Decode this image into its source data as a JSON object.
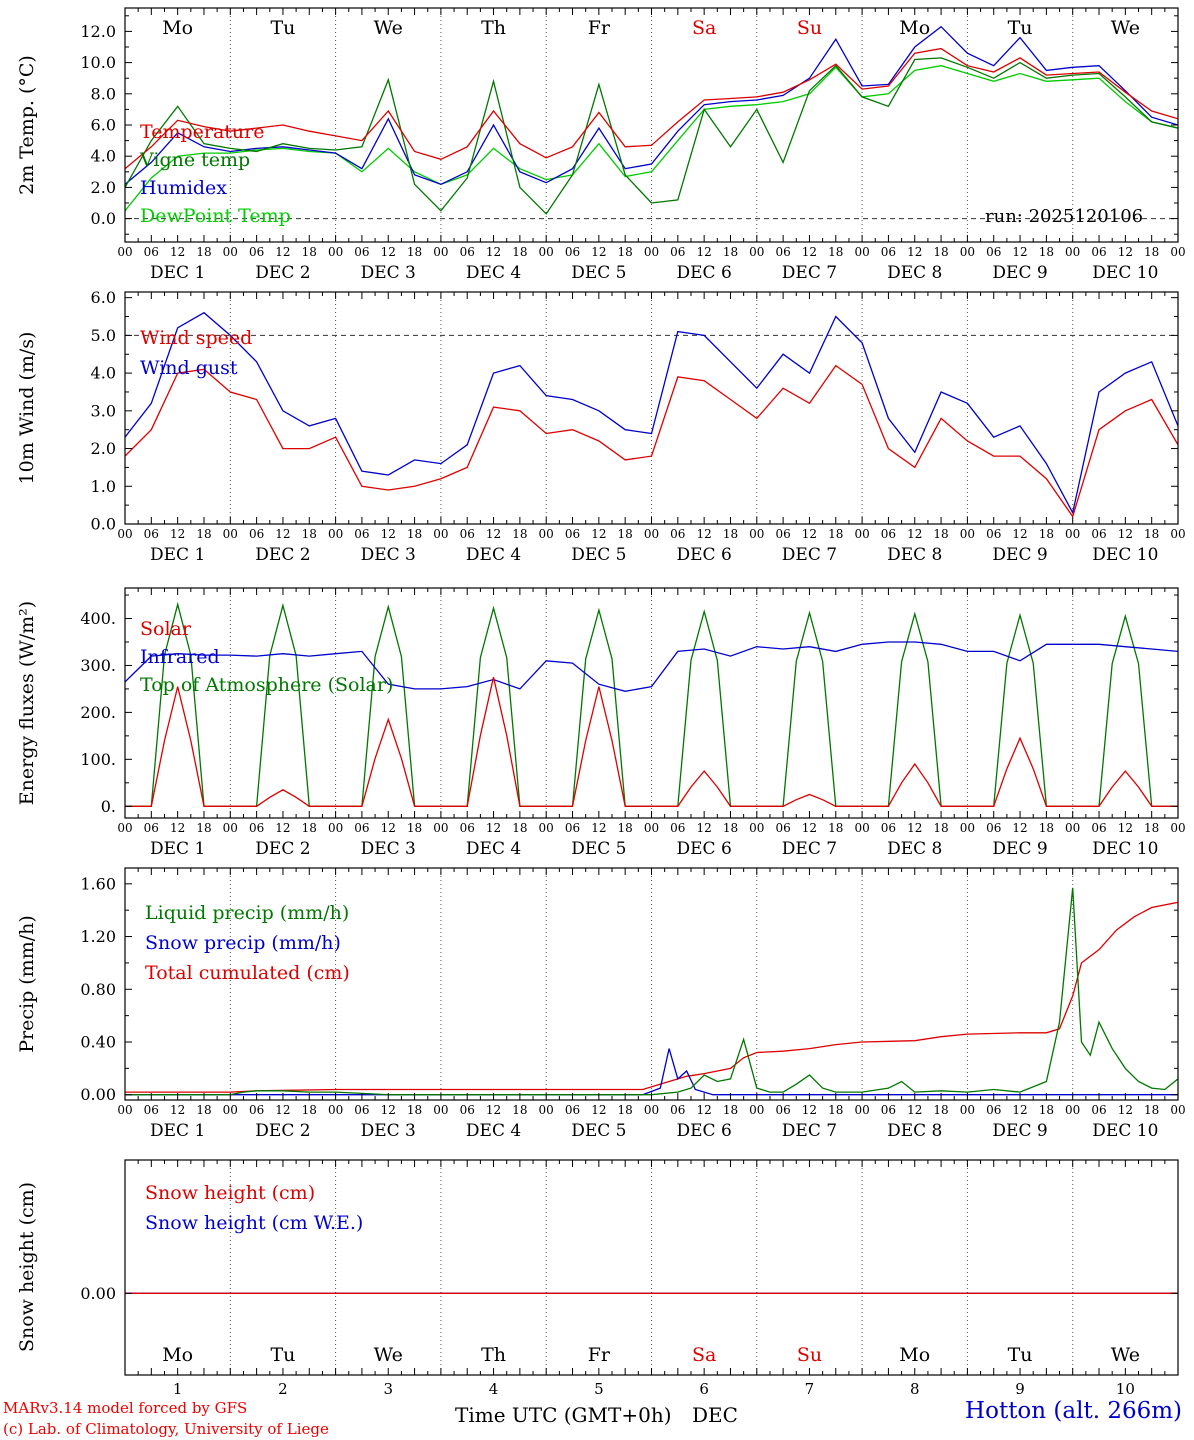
{
  "station_label": "Hotton (alt. 266m)",
  "credits": [
    "MARv3.14 model forced by GFS",
    "(c) Lab. of Climatology, University of Liege"
  ],
  "time_axis_label": "Time UTC (GMT+0h)",
  "month_label": "DEC",
  "run_label": "run: 2025120106",
  "colors": {
    "red": "#dd0000",
    "darkgreen": "#007700",
    "blue": "#0000cc",
    "lightgreen": "#00cc00",
    "black": "#000000"
  },
  "x_axis": {
    "tick_labels_cycle": [
      "00",
      "06",
      "12",
      "18"
    ],
    "month": "DEC",
    "day_numbers": [
      1,
      2,
      3,
      4,
      5,
      6,
      7,
      8,
      9,
      10
    ],
    "day_names": [
      "Mo",
      "Tu",
      "We",
      "Th",
      "Fr",
      "Sa",
      "Su",
      "Mo",
      "Tu",
      "We"
    ],
    "weekend_indices": [
      5,
      6
    ],
    "weekend_color": "#dd0000",
    "day_name_color": "#000000"
  },
  "chart_data": {
    "type": "line",
    "panels": [
      {
        "id": "temp",
        "type": "line",
        "ylabel": "2m Temp. (°C)",
        "ylim": [
          -1.5,
          13.5
        ],
        "yticks": [
          {
            "v": 0,
            "label": "0.0"
          },
          {
            "v": 2,
            "label": "2.0"
          },
          {
            "v": 4,
            "label": "4.0"
          },
          {
            "v": 6,
            "label": "6.0"
          },
          {
            "v": 8,
            "label": "8.0"
          },
          {
            "v": 10,
            "label": "10.0"
          },
          {
            "v": 12,
            "label": "12.0"
          }
        ],
        "yminor": 1,
        "hline": 0,
        "series": [
          {
            "name": "Temperature",
            "color": "#dd0000",
            "xstep": 6,
            "y": [
              3.2,
              4.6,
              6.3,
              5.9,
              5.6,
              5.8,
              6.0,
              5.6,
              5.3,
              5.0,
              6.9,
              4.3,
              3.8,
              4.6,
              6.9,
              4.8,
              3.9,
              4.6,
              6.8,
              4.6,
              4.7,
              6.2,
              7.6,
              7.7,
              7.8,
              8.1,
              8.9,
              9.9,
              8.3,
              8.5,
              10.6,
              10.9,
              9.8,
              9.4,
              10.3,
              9.2,
              9.3,
              9.4,
              8.1,
              6.9,
              6.4
            ]
          },
          {
            "name": "Vigne temp",
            "color": "#007700",
            "xstep": 6,
            "y": [
              2.0,
              5.0,
              7.2,
              4.8,
              4.5,
              4.3,
              4.8,
              4.5,
              4.4,
              4.6,
              8.9,
              2.2,
              0.5,
              2.6,
              8.8,
              2.0,
              0.3,
              2.8,
              8.6,
              2.8,
              1.0,
              1.2,
              7.0,
              4.6,
              7.0,
              3.6,
              8.2,
              9.8,
              7.8,
              7.2,
              10.2,
              10.3,
              9.7,
              9.0,
              10.0,
              9.0,
              9.2,
              9.3,
              7.8,
              6.2,
              5.8
            ]
          },
          {
            "name": "Humidex",
            "color": "#0000cc",
            "xstep": 6,
            "y": [
              2.2,
              3.6,
              5.5,
              4.6,
              4.3,
              4.5,
              4.6,
              4.4,
              4.2,
              3.2,
              6.4,
              2.8,
              2.2,
              3.0,
              6.0,
              3.0,
              2.3,
              3.2,
              5.8,
              3.2,
              3.5,
              5.6,
              7.3,
              7.5,
              7.6,
              7.9,
              9.0,
              11.5,
              8.5,
              8.6,
              11.0,
              12.3,
              10.6,
              9.8,
              11.6,
              9.5,
              9.7,
              9.8,
              8.2,
              6.5,
              6.0
            ]
          },
          {
            "name": "DewPoint Temp",
            "color": "#00cc00",
            "xstep": 6,
            "y": [
              0.5,
              2.6,
              4.0,
              4.2,
              4.2,
              4.4,
              4.5,
              4.3,
              4.2,
              3.0,
              4.5,
              3.0,
              2.2,
              2.8,
              4.5,
              3.2,
              2.5,
              2.8,
              4.8,
              2.7,
              3.0,
              5.0,
              7.0,
              7.2,
              7.3,
              7.5,
              8.0,
              9.7,
              7.8,
              8.0,
              9.5,
              9.8,
              9.3,
              8.8,
              9.3,
              8.8,
              8.9,
              9.0,
              7.5,
              6.2,
              5.8
            ]
          }
        ]
      },
      {
        "id": "wind",
        "type": "line",
        "ylabel": "10m Wind (m/s)",
        "ylim": [
          0,
          6.15
        ],
        "yticks": [
          {
            "v": 0,
            "label": "0.0"
          },
          {
            "v": 1,
            "label": "1.0"
          },
          {
            "v": 2,
            "label": "2.0"
          },
          {
            "v": 3,
            "label": "3.0"
          },
          {
            "v": 4,
            "label": "4.0"
          },
          {
            "v": 5,
            "label": "5.0"
          },
          {
            "v": 6,
            "label": "6.0"
          }
        ],
        "yminor": 0.5,
        "hline": 5,
        "series": [
          {
            "name": "Wind speed",
            "color": "#dd0000",
            "xstep": 6,
            "y": [
              1.8,
              2.5,
              4.0,
              4.1,
              3.5,
              3.3,
              2.0,
              2.0,
              2.3,
              1.0,
              0.9,
              1.0,
              1.2,
              1.5,
              3.1,
              3.0,
              2.4,
              2.5,
              2.2,
              1.7,
              1.8,
              3.9,
              3.8,
              3.3,
              2.8,
              3.6,
              3.2,
              4.2,
              3.7,
              2.0,
              1.5,
              2.8,
              2.2,
              1.8,
              1.8,
              1.2,
              0.2,
              2.5,
              3.0,
              3.3,
              2.1
            ]
          },
          {
            "name": "Wind gust",
            "color": "#0000cc",
            "xstep": 6,
            "y": [
              2.3,
              3.2,
              5.2,
              5.6,
              5.0,
              4.3,
              3.0,
              2.6,
              2.8,
              1.4,
              1.3,
              1.7,
              1.6,
              2.1,
              4.0,
              4.2,
              3.4,
              3.3,
              3.0,
              2.5,
              2.4,
              5.1,
              5.0,
              4.3,
              3.6,
              4.5,
              4.0,
              5.5,
              4.8,
              2.8,
              1.9,
              3.5,
              3.2,
              2.3,
              2.6,
              1.6,
              0.3,
              3.5,
              4.0,
              4.3,
              2.6
            ]
          }
        ]
      },
      {
        "id": "energy",
        "type": "line",
        "ylabel": "Energy fluxes (W/m²)",
        "ylim": [
          -25,
          465
        ],
        "yticks": [
          {
            "v": 0,
            "label": "0."
          },
          {
            "v": 100,
            "label": "100."
          },
          {
            "v": 200,
            "label": "200."
          },
          {
            "v": 300,
            "label": "300."
          },
          {
            "v": 400,
            "label": "400."
          }
        ],
        "yminor": 50,
        "hline": null,
        "series": [
          {
            "name": "Solar",
            "color": "#dd0000",
            "x": [
              0,
              6,
              9,
              12,
              15,
              18,
              30,
              33,
              36,
              39,
              42,
              54,
              57,
              60,
              63,
              66,
              78,
              81,
              84,
              87,
              90,
              102,
              105,
              108,
              111,
              114,
              126,
              129,
              132,
              135,
              138,
              150,
              153,
              156,
              159,
              162,
              174,
              177,
              180,
              183,
              186,
              198,
              201,
              204,
              207,
              210,
              222,
              225,
              228,
              231,
              234,
              240
            ],
            "y": [
              0,
              0,
              140,
              255,
              140,
              0,
              0,
              19,
              35,
              19,
              0,
              0,
              102,
              185,
              102,
              0,
              0,
              151,
              275,
              151,
              0,
              0,
              140,
              255,
              140,
              0,
              0,
              41,
              75,
              41,
              0,
              0,
              14,
              25,
              14,
              0,
              0,
              50,
              90,
              50,
              0,
              0,
              80,
              145,
              80,
              0,
              0,
              41,
              75,
              41,
              0,
              0
            ]
          },
          {
            "name": "Infrared",
            "color": "#0000cc",
            "xstep": 6,
            "y": [
              265,
              320,
              325,
              322,
              322,
              320,
              325,
              320,
              325,
              330,
              260,
              250,
              250,
              255,
              270,
              250,
              310,
              305,
              260,
              245,
              255,
              330,
              335,
              320,
              340,
              335,
              340,
              330,
              345,
              350,
              350,
              345,
              330,
              330,
              310,
              345,
              345,
              345,
              340,
              335,
              330
            ]
          },
          {
            "name": "Top of Atmosphere (Solar)",
            "color": "#007700",
            "x": [
              0,
              6,
              9,
              12,
              15,
              18,
              30,
              33,
              36,
              39,
              42,
              54,
              57,
              60,
              63,
              66,
              78,
              81,
              84,
              87,
              90,
              102,
              105,
              108,
              111,
              114,
              126,
              129,
              132,
              135,
              138,
              150,
              153,
              156,
              159,
              162,
              174,
              177,
              180,
              183,
              186,
              198,
              201,
              204,
              207,
              210,
              222,
              225,
              228,
              231,
              234,
              240
            ],
            "y": [
              0,
              0,
              322,
              430,
              322,
              0,
              0,
              321,
              428,
              321,
              0,
              0,
              319,
              425,
              319,
              0,
              0,
              317,
              422,
              317,
              0,
              0,
              314,
              418,
              314,
              0,
              0,
              311,
              415,
              311,
              0,
              0,
              309,
              412,
              309,
              0,
              0,
              308,
              410,
              308,
              0,
              0,
              305,
              407,
              305,
              0,
              0,
              304,
              405,
              304,
              0,
              0
            ]
          }
        ]
      },
      {
        "id": "precip",
        "type": "line",
        "ylabel": "Precip (mm/h)",
        "ylim": [
          -0.04,
          1.72
        ],
        "yticks": [
          {
            "v": 0,
            "label": "0.00"
          },
          {
            "v": 0.4,
            "label": "0.40"
          },
          {
            "v": 0.8,
            "label": "0.80"
          },
          {
            "v": 1.2,
            "label": "1.20"
          },
          {
            "v": 1.6,
            "label": "1.60"
          }
        ],
        "yminor": 0.2,
        "hline": null,
        "series": [
          {
            "name": "Liquid precip (mm/h)",
            "color": "#007700",
            "x": [
              0,
              24,
              27,
              30,
              36,
              42,
              48,
              54,
              60,
              120,
              126,
              129,
              132,
              135,
              138,
              141,
              144,
              147,
              150,
              153,
              156,
              159,
              162,
              168,
              174,
              177,
              180,
              186,
              192,
              198,
              204,
              210,
              213,
              216,
              218,
              220,
              222,
              225,
              228,
              231,
              234,
              237,
              240
            ],
            "y": [
              0,
              0,
              0.02,
              0.03,
              0.03,
              0.02,
              0.02,
              0.01,
              0,
              0,
              0.02,
              0.05,
              0.15,
              0.1,
              0.12,
              0.42,
              0.05,
              0.02,
              0.02,
              0.08,
              0.15,
              0.05,
              0.02,
              0.02,
              0.05,
              0.1,
              0.02,
              0.03,
              0.02,
              0.04,
              0.02,
              0.1,
              0.55,
              1.57,
              0.4,
              0.3,
              0.55,
              0.35,
              0.2,
              0.1,
              0.05,
              0.04,
              0.12
            ]
          },
          {
            "name": "Snow precip (mm/h)",
            "color": "#0000cc",
            "x": [
              0,
              118,
              122,
              124,
              126,
              128,
              130,
              134,
              240
            ],
            "y": [
              0,
              0,
              0.05,
              0.35,
              0.12,
              0.18,
              0.04,
              0,
              0
            ]
          },
          {
            "name": "Total cumulated (cm)",
            "color": "#dd0000",
            "x": [
              0,
              24,
              30,
              48,
              118,
              124,
              128,
              132,
              138,
              141,
              144,
              150,
              156,
              162,
              168,
              180,
              186,
              192,
              204,
              210,
              213,
              216,
              218,
              222,
              226,
              230,
              234,
              240
            ],
            "y": [
              0.02,
              0.02,
              0.03,
              0.04,
              0.04,
              0.1,
              0.14,
              0.16,
              0.2,
              0.28,
              0.32,
              0.33,
              0.35,
              0.38,
              0.4,
              0.41,
              0.44,
              0.46,
              0.47,
              0.47,
              0.5,
              0.75,
              1.0,
              1.1,
              1.25,
              1.35,
              1.42,
              1.46
            ]
          }
        ]
      },
      {
        "id": "snow",
        "type": "line",
        "ylabel": "Snow height (cm)",
        "ylim": [
          -0.38,
          0.62
        ],
        "yticks": [
          {
            "v": 0,
            "label": "0.00"
          }
        ],
        "yminor": null,
        "hline": null,
        "series": [
          {
            "name": "Snow height (cm)",
            "color": "#dd0000",
            "x": [
              0,
              240
            ],
            "y": [
              0,
              0
            ]
          },
          {
            "name": "Snow height (cm W.E.)",
            "color": "#0000cc",
            "x": [
              0,
              240
            ],
            "y": [
              0,
              0
            ]
          }
        ]
      }
    ]
  }
}
